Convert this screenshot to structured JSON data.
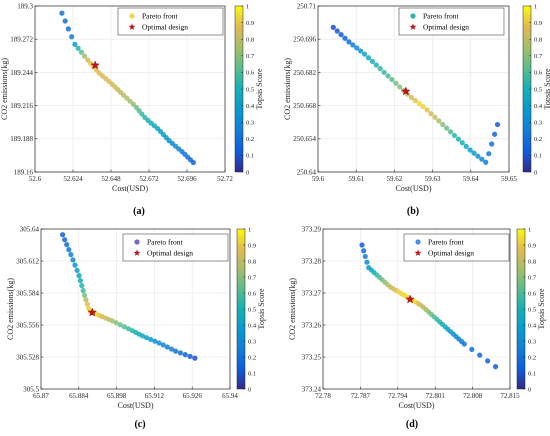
{
  "colorbar": {
    "label": "Topsis Score",
    "ticks": [
      "0",
      "0.1",
      "0.2",
      "0.3",
      "0.4",
      "0.5",
      "0.6",
      "0.7",
      "0.8",
      "0.9",
      "1"
    ]
  },
  "chart_data": [
    {
      "type": "scatter",
      "panel_label": "(a)",
      "xlabel": "Cost(USD)",
      "ylabel": "CO2 emissions(kg)",
      "xlim": [
        52.6,
        52.72
      ],
      "ylim": [
        189.16,
        189.3
      ],
      "xticks": [
        "52.6",
        "52.624",
        "52.648",
        "52.672",
        "52.696",
        "52.72"
      ],
      "yticks": [
        "189.16",
        "189.188",
        "189.216",
        "189.244",
        "189.272",
        "189.3"
      ],
      "legend": {
        "position": "top-right",
        "front_label": "Pareto front",
        "optimal_label": "Optimal design",
        "front_color": "#f5d34a"
      },
      "series": [
        {
          "name": "Pareto front",
          "x": [
            52.617,
            52.625,
            52.633,
            52.64,
            52.648,
            52.655,
            52.663,
            52.67,
            52.678,
            52.685,
            52.693,
            52.7
          ],
          "y": [
            189.294,
            189.268,
            189.255,
            189.244,
            189.235,
            189.226,
            189.216,
            189.205,
            189.196,
            189.186,
            189.177,
            189.168
          ]
        },
        {
          "name": "Optimal design",
          "x": [
            52.638
          ],
          "y": [
            189.25
          ]
        }
      ]
    },
    {
      "type": "scatter",
      "panel_label": "(b)",
      "xlabel": "Cost(USD)",
      "ylabel": "CO2 emissions(kg)",
      "xlim": [
        59.6,
        59.65
      ],
      "ylim": [
        250.64,
        250.71
      ],
      "xticks": [
        "59.6",
        "59.61",
        "59.62",
        "59.63",
        "59.64",
        "59.65"
      ],
      "yticks": [
        "250.64",
        "250.654",
        "250.668",
        "250.682",
        "250.696",
        "250.71"
      ],
      "legend": {
        "position": "top-right",
        "front_label": "Pareto front",
        "optimal_label": "Optimal design",
        "front_color": "#28b8b0"
      },
      "series": [
        {
          "name": "Pareto front",
          "x": [
            59.604,
            59.608,
            59.612,
            59.616,
            59.62,
            59.624,
            59.628,
            59.632,
            59.636,
            59.64,
            59.644,
            59.647
          ],
          "y": [
            250.701,
            250.695,
            250.69,
            250.684,
            250.678,
            250.672,
            250.667,
            250.661,
            250.655,
            250.649,
            250.644,
            250.66
          ]
        },
        {
          "name": "Optimal design",
          "x": [
            59.623
          ],
          "y": [
            250.674
          ]
        }
      ]
    },
    {
      "type": "scatter",
      "panel_label": "(c)",
      "xlabel": "Cost(USD)",
      "ylabel": "CO2 emissions(kg)",
      "xlim": [
        65.87,
        65.94
      ],
      "ylim": [
        305.5,
        305.64
      ],
      "xticks": [
        "65.87",
        "65.884",
        "65.898",
        "65.912",
        "65.926",
        "65.94"
      ],
      "yticks": [
        "305.5",
        "305.528",
        "305.556",
        "305.584",
        "305.612",
        "305.64"
      ],
      "legend": {
        "position": "top-right",
        "front_label": "Pareto front",
        "optimal_label": "Optimal design",
        "front_color": "#7a63c9"
      },
      "series": [
        {
          "name": "Pareto front",
          "x": [
            65.878,
            65.881,
            65.884,
            65.886,
            65.888,
            65.892,
            65.897,
            65.903,
            65.908,
            65.914,
            65.92,
            65.927
          ],
          "y": [
            305.635,
            305.618,
            305.6,
            305.583,
            305.568,
            305.564,
            305.559,
            305.552,
            305.546,
            305.54,
            305.533,
            305.527
          ]
        },
        {
          "name": "Optimal design",
          "x": [
            65.889
          ],
          "y": [
            305.567
          ]
        }
      ]
    },
    {
      "type": "scatter",
      "panel_label": "(d)",
      "xlabel": "Cost(USD)",
      "ylabel": "CO2 emissions(kg)",
      "xlim": [
        72.78,
        72.815
      ],
      "ylim": [
        373.24,
        373.29
      ],
      "xticks": [
        "72.78",
        "72.787",
        "72.794",
        "72.801",
        "72.808",
        "72.815"
      ],
      "yticks": [
        "373.24",
        "373.25",
        "373.26",
        "373.27",
        "373.28",
        "373.29"
      ],
      "legend": {
        "position": "top-right",
        "front_label": "Pareto front",
        "optimal_label": "Optimal design",
        "front_color": "#4a8df0"
      },
      "series": [
        {
          "name": "Pareto front",
          "x": [
            72.7873,
            72.7885,
            72.7905,
            72.7925,
            72.7945,
            72.7965,
            72.7985,
            72.8005,
            72.8025,
            72.8045,
            72.8065,
            72.8123
          ],
          "y": [
            373.285,
            373.278,
            373.275,
            373.272,
            373.27,
            373.268,
            373.266,
            373.263,
            373.26,
            373.257,
            373.254,
            373.247
          ]
        },
        {
          "name": "Optimal design",
          "x": [
            72.7963
          ],
          "y": [
            373.268
          ]
        }
      ]
    }
  ]
}
